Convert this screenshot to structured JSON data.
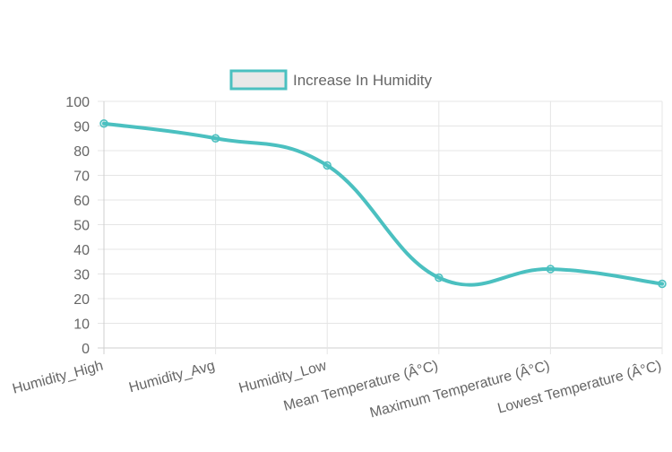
{
  "chart_data": {
    "type": "line",
    "categories": [
      "Humidity_High",
      "Humidity_Avg",
      "Humidity_Low",
      "Mean Temperature (Â°C)",
      "Maximum Temperature (Â°C)",
      "Lowest Temperature (Â°C)"
    ],
    "series": [
      {
        "name": "Increase In Humidity",
        "values": [
          91,
          85,
          74,
          28.5,
          32,
          26
        ],
        "color": "#4bc0c0",
        "fill_color": "#e8e8e8"
      }
    ],
    "ylim": [
      0,
      100
    ],
    "yticks": [
      0,
      10,
      20,
      30,
      40,
      50,
      60,
      70,
      80,
      90,
      100
    ],
    "grid": true,
    "legend_position": "top",
    "title": "",
    "xlabel": "",
    "ylabel": ""
  }
}
